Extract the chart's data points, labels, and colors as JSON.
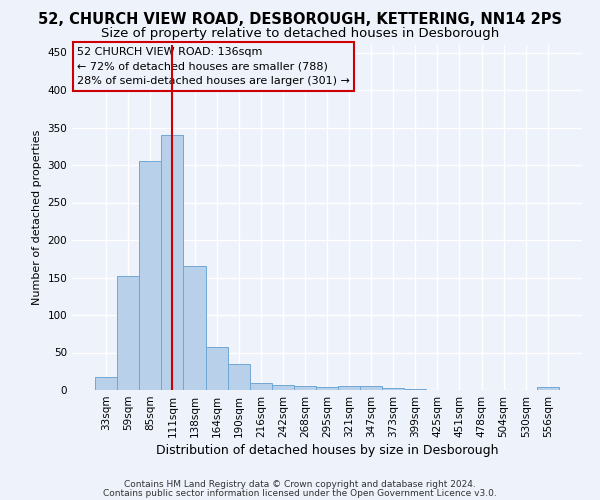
{
  "title1": "52, CHURCH VIEW ROAD, DESBOROUGH, KETTERING, NN14 2PS",
  "title2": "Size of property relative to detached houses in Desborough",
  "xlabel": "Distribution of detached houses by size in Desborough",
  "ylabel": "Number of detached properties",
  "categories": [
    "33sqm",
    "59sqm",
    "85sqm",
    "111sqm",
    "138sqm",
    "164sqm",
    "190sqm",
    "216sqm",
    "242sqm",
    "268sqm",
    "295sqm",
    "321sqm",
    "347sqm",
    "373sqm",
    "399sqm",
    "425sqm",
    "451sqm",
    "478sqm",
    "504sqm",
    "530sqm",
    "556sqm"
  ],
  "values": [
    17,
    152,
    305,
    340,
    165,
    57,
    35,
    9,
    7,
    5,
    4,
    5,
    5,
    3,
    2,
    0,
    0,
    0,
    0,
    0,
    4
  ],
  "bar_color": "#b8d0ea",
  "bar_edge_color": "#6fa8d4",
  "property_line_x": 4.5,
  "property_label": "52 CHURCH VIEW ROAD: 136sqm",
  "annotation_line1": "← 72% of detached houses are smaller (788)",
  "annotation_line2": "28% of semi-detached houses are larger (301) →",
  "vline_color": "#cc0000",
  "box_color": "#cc0000",
  "ylim": [
    0,
    460
  ],
  "yticks": [
    0,
    50,
    100,
    150,
    200,
    250,
    300,
    350,
    400,
    450
  ],
  "footnote1": "Contains HM Land Registry data © Crown copyright and database right 2024.",
  "footnote2": "Contains public sector information licensed under the Open Government Licence v3.0.",
  "background_color": "#eef2fb",
  "grid_color": "#ffffff",
  "title1_fontsize": 10.5,
  "title2_fontsize": 9.5,
  "xlabel_fontsize": 9,
  "ylabel_fontsize": 8,
  "tick_fontsize": 7.5,
  "annot_fontsize": 8,
  "footnote_fontsize": 6.5
}
